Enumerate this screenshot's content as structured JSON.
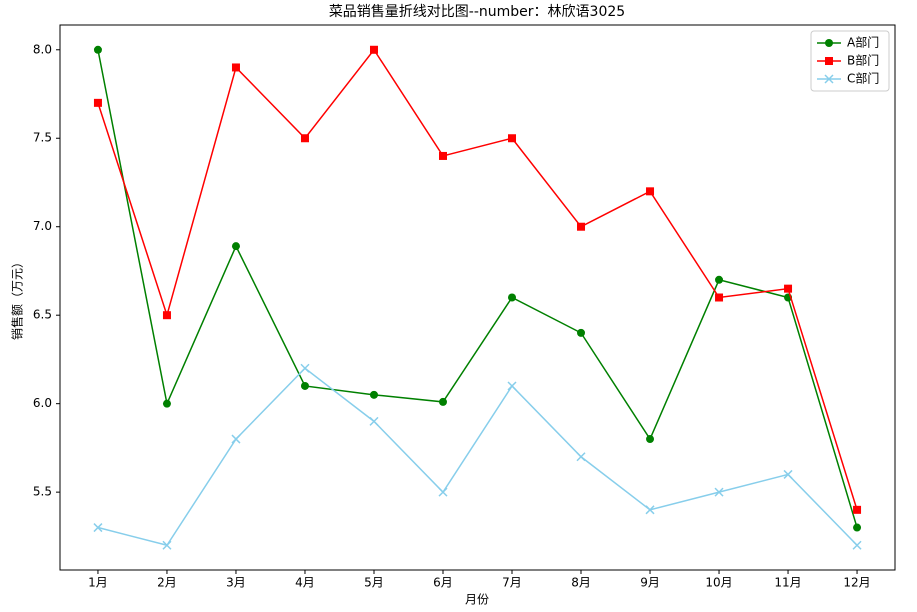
{
  "chart_data": {
    "type": "line",
    "title": "菜品销售量折线对比图--number：林欣语3025",
    "x_label": "月份",
    "y_label": "销售额（万元）",
    "categories": [
      "1月",
      "2月",
      "3月",
      "4月",
      "5月",
      "6月",
      "7月",
      "8月",
      "9月",
      "10月",
      "11月",
      "12月"
    ],
    "series": [
      {
        "name": "A部门",
        "color": "green",
        "marker": "circle",
        "values": [
          8.0,
          6.0,
          6.89,
          6.1,
          6.05,
          6.01,
          6.6,
          6.4,
          5.8,
          6.7,
          6.6,
          5.3
        ]
      },
      {
        "name": "B部门",
        "color": "red",
        "marker": "square",
        "values": [
          7.7,
          6.5,
          7.9,
          7.5,
          8.0,
          7.4,
          7.5,
          7.0,
          7.2,
          6.6,
          6.65,
          5.4
        ]
      },
      {
        "name": "C部门",
        "color": "skyblue",
        "marker": "x",
        "values": [
          5.3,
          5.2,
          5.8,
          6.2,
          5.9,
          5.5,
          6.1,
          5.7,
          5.4,
          5.5,
          5.6,
          5.2
        ]
      }
    ],
    "ylim": [
      5.06,
      8.14
    ],
    "yticks": [
      5.5,
      {
        "value": 6.0,
        "label": "6.0"
      },
      6.5,
      {
        "value": 7.0,
        "label": "7.0"
      },
      7.5,
      {
        "value": 8.0,
        "label": "8.0"
      }
    ],
    "legend": "upper right",
    "grid": false
  }
}
